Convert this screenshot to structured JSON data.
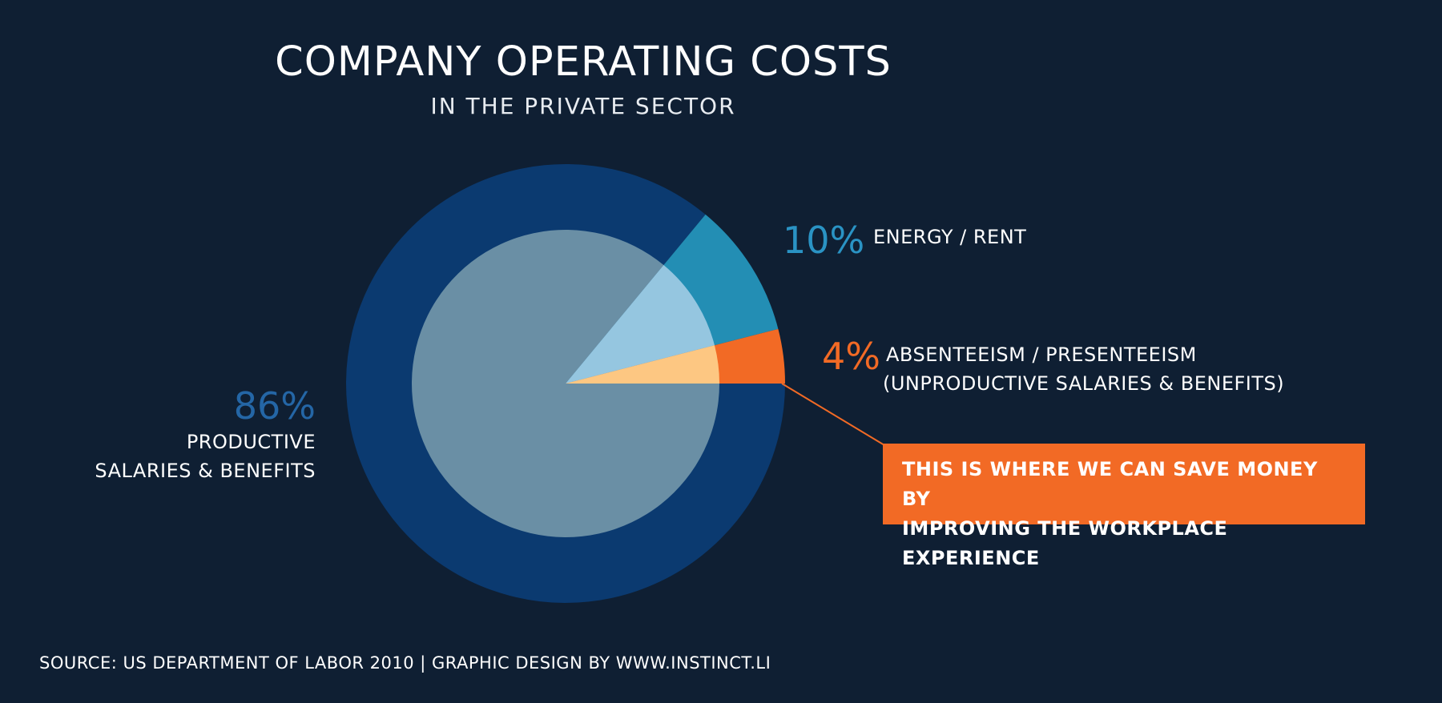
{
  "colors": {
    "background": "#0f1f33",
    "productive_outer": "#0b3a70",
    "productive_inner": "#6a8fa5",
    "energy_outer": "#238eb4",
    "energy_inner": "#95c6e0",
    "absenteeism_outer": "#f26a25",
    "absenteeism_inner": "#fdc782",
    "productive_pct_text": "#2466a6",
    "energy_pct_text": "#2a93c4",
    "absenteeism_pct_text": "#f26a25"
  },
  "chart_data": {
    "type": "pie",
    "title": "COMPANY OPERATING COSTS",
    "subtitle": "IN THE PRIVATE SECTOR",
    "slices": [
      {
        "pct_label": "86%",
        "value": 86,
        "label_lines": [
          "PRODUCTIVE",
          "SALARIES & BENEFITS"
        ]
      },
      {
        "pct_label": "10%",
        "value": 10,
        "label_lines": [
          "ENERGY / RENT"
        ]
      },
      {
        "pct_label": "4%",
        "value": 4,
        "label_lines": [
          "ABSENTEEISM / PRESENTEEISM",
          "(UNPRODUCTIVE SALARIES & BENEFITS)"
        ]
      }
    ],
    "annotation": {
      "lines": [
        "THIS IS WHERE WE CAN SAVE MONEY BY",
        "IMPROVING THE WORKPLACE EXPERIENCE"
      ]
    },
    "source": "SOURCE: US DEPARTMENT OF LABOR 2010  |  GRAPHIC DESIGN BY WWW.INSTINCT.LI"
  }
}
